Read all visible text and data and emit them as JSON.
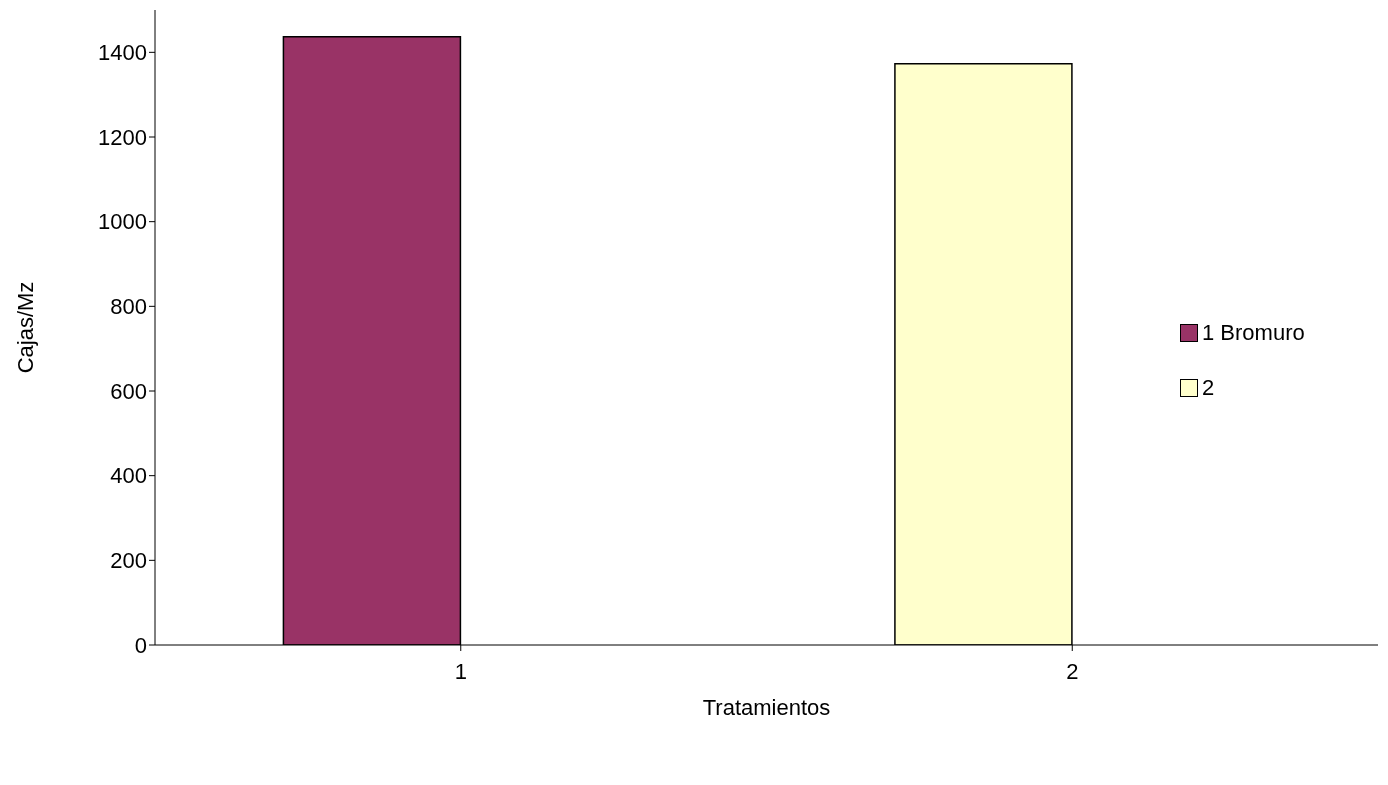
{
  "chart_data": {
    "type": "bar",
    "xlabel": "Tratamientos",
    "ylabel": "Cajas/Mz",
    "categories": [
      "1",
      "2"
    ],
    "series": [
      {
        "name": "1 Bromuro",
        "color": "#993366",
        "colors": [
          "#993366",
          "#ffffcc"
        ],
        "values": [
          1437,
          1373
        ]
      },
      {
        "name": "2",
        "color": "#ffffcc",
        "values": [
          null,
          null
        ]
      }
    ],
    "ylim": [
      0,
      1500
    ],
    "yticks": [
      0,
      200,
      400,
      600,
      800,
      1000,
      1200,
      1400
    ],
    "grid": false,
    "legend": "right"
  }
}
